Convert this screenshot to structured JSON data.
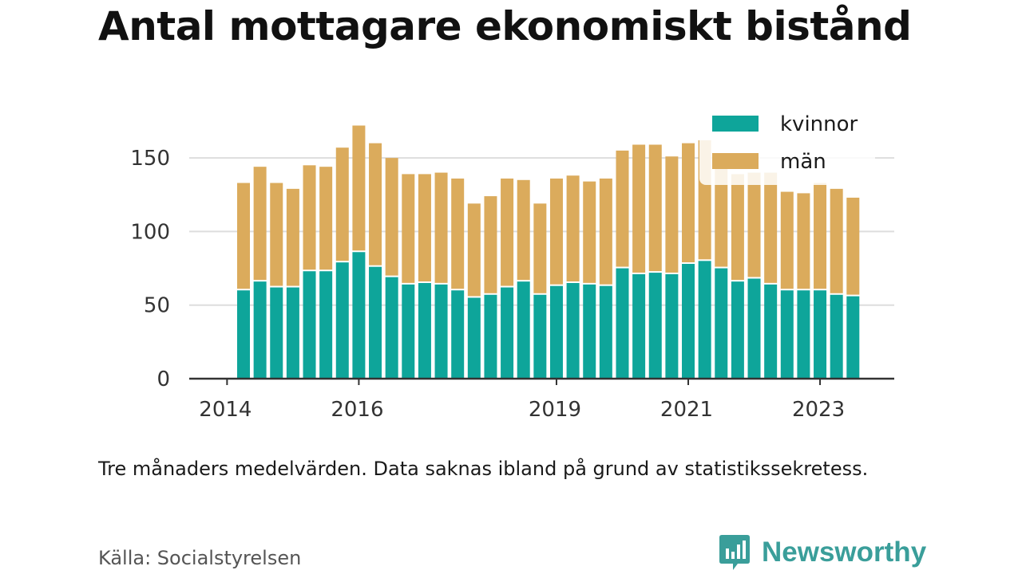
{
  "title": "Antal mottagare ekonomiskt bistånd",
  "note": "Tre månaders medelvärden. Data saknas ibland på grund av statistikssekretess.",
  "source": "Källa: Socialstyrelsen",
  "brand": {
    "name": "Newsworthy",
    "icon": "newsworthy-logo-icon",
    "color": "#3a9e9a"
  },
  "colors": {
    "kvinnor": "#0ea59a",
    "man": "#dbab5c",
    "grid": "#dddddd",
    "axis": "#333333"
  },
  "chart_data": {
    "type": "bar",
    "stacked": true,
    "title": "Antal mottagare ekonomiskt bistånd",
    "xlabel": "",
    "ylabel": "",
    "ylim": [
      0,
      175
    ],
    "yticks": [
      0,
      50,
      100,
      150
    ],
    "xticks": [
      "2014",
      "2016",
      "2019",
      "2021",
      "2023"
    ],
    "grid": true,
    "legend_position": "top-right",
    "categories": [
      "2014 Q2",
      "2014 Q3",
      "2014 Q4",
      "2015 Q1",
      "2015 Q2",
      "2015 Q3",
      "2015 Q4",
      "2016 Q1",
      "2016 Q2",
      "2016 Q3",
      "2016 Q4",
      "2017 Q1",
      "2017 Q2",
      "2017 Q3",
      "2017 Q4",
      "2018 Q1",
      "2018 Q2",
      "2018 Q3",
      "2018 Q4",
      "2019 Q1",
      "2019 Q2",
      "2019 Q3",
      "2019 Q4",
      "2020 Q1",
      "2020 Q2",
      "2020 Q3",
      "2020 Q4",
      "2021 Q1",
      "2021 Q2",
      "2021 Q3",
      "2021 Q4",
      "2022 Q1",
      "2022 Q2",
      "2022 Q3",
      "2022 Q4",
      "2023 Q1",
      "2023 Q2",
      "2023 Q3"
    ],
    "series": [
      {
        "name": "kvinnor",
        "values": [
          60,
          66,
          62,
          62,
          73,
          73,
          79,
          86,
          76,
          69,
          64,
          65,
          64,
          60,
          55,
          57,
          62,
          66,
          57,
          63,
          65,
          64,
          63,
          75,
          71,
          72,
          71,
          78,
          80,
          75,
          66,
          68,
          64,
          60,
          60,
          60,
          57,
          56
        ]
      },
      {
        "name": "män",
        "values": [
          73,
          78,
          71,
          67,
          72,
          71,
          78,
          86,
          84,
          81,
          75,
          74,
          76,
          76,
          64,
          67,
          74,
          69,
          62,
          73,
          73,
          70,
          73,
          80,
          88,
          87,
          80,
          82,
          82,
          74,
          73,
          72,
          76,
          67,
          66,
          73,
          72,
          67
        ]
      }
    ]
  }
}
